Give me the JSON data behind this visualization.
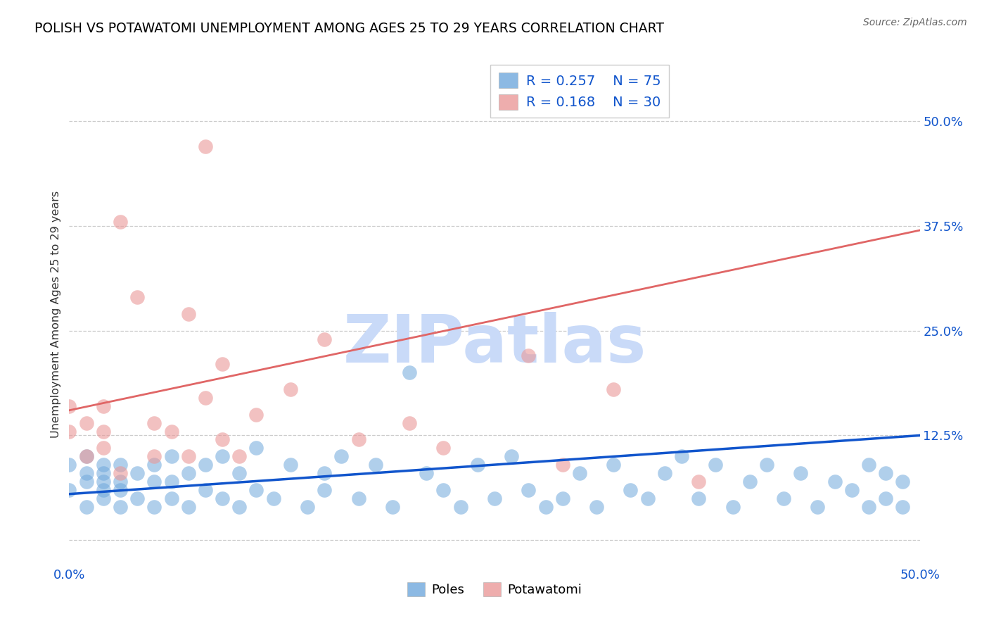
{
  "title": "POLISH VS POTAWATOMI UNEMPLOYMENT AMONG AGES 25 TO 29 YEARS CORRELATION CHART",
  "source_text": "Source: ZipAtlas.com",
  "ylabel": "Unemployment Among Ages 25 to 29 years",
  "xlim": [
    0.0,
    0.5
  ],
  "ylim": [
    -0.03,
    0.57
  ],
  "ytick_positions": [
    0.0,
    0.125,
    0.25,
    0.375,
    0.5
  ],
  "ytick_labels": [
    "",
    "12.5%",
    "25.0%",
    "37.5%",
    "50.0%"
  ],
  "poles_R": 0.257,
  "poles_N": 75,
  "potawatomi_R": 0.168,
  "potawatomi_N": 30,
  "poles_color": "#6fa8dc",
  "potawatomi_color": "#ea9999",
  "poles_line_color": "#1155cc",
  "potawatomi_line_color": "#e06666",
  "legend_text_color": "#1155cc",
  "watermark_color": "#c9daf8",
  "background_color": "#ffffff",
  "grid_color": "#cccccc",
  "title_color": "#000000",
  "poles_x": [
    0.0,
    0.0,
    0.01,
    0.01,
    0.01,
    0.01,
    0.02,
    0.02,
    0.02,
    0.02,
    0.02,
    0.03,
    0.03,
    0.03,
    0.03,
    0.04,
    0.04,
    0.05,
    0.05,
    0.05,
    0.06,
    0.06,
    0.06,
    0.07,
    0.07,
    0.08,
    0.08,
    0.09,
    0.09,
    0.1,
    0.1,
    0.11,
    0.11,
    0.12,
    0.13,
    0.14,
    0.15,
    0.15,
    0.16,
    0.17,
    0.18,
    0.19,
    0.2,
    0.21,
    0.22,
    0.23,
    0.24,
    0.25,
    0.26,
    0.27,
    0.28,
    0.29,
    0.3,
    0.31,
    0.32,
    0.33,
    0.34,
    0.35,
    0.36,
    0.37,
    0.38,
    0.39,
    0.4,
    0.41,
    0.42,
    0.43,
    0.44,
    0.45,
    0.46,
    0.47,
    0.47,
    0.48,
    0.48,
    0.49,
    0.49
  ],
  "poles_y": [
    0.06,
    0.09,
    0.04,
    0.07,
    0.1,
    0.08,
    0.05,
    0.08,
    0.06,
    0.09,
    0.07,
    0.04,
    0.07,
    0.06,
    0.09,
    0.05,
    0.08,
    0.04,
    0.07,
    0.09,
    0.05,
    0.07,
    0.1,
    0.04,
    0.08,
    0.06,
    0.09,
    0.05,
    0.1,
    0.04,
    0.08,
    0.06,
    0.11,
    0.05,
    0.09,
    0.04,
    0.08,
    0.06,
    0.1,
    0.05,
    0.09,
    0.04,
    0.2,
    0.08,
    0.06,
    0.04,
    0.09,
    0.05,
    0.1,
    0.06,
    0.04,
    0.05,
    0.08,
    0.04,
    0.09,
    0.06,
    0.05,
    0.08,
    0.1,
    0.05,
    0.09,
    0.04,
    0.07,
    0.09,
    0.05,
    0.08,
    0.04,
    0.07,
    0.06,
    0.09,
    0.04,
    0.08,
    0.05,
    0.07,
    0.04
  ],
  "potawatomi_x": [
    0.0,
    0.0,
    0.01,
    0.01,
    0.02,
    0.02,
    0.02,
    0.03,
    0.03,
    0.04,
    0.05,
    0.05,
    0.06,
    0.07,
    0.07,
    0.08,
    0.08,
    0.09,
    0.09,
    0.1,
    0.11,
    0.13,
    0.15,
    0.17,
    0.2,
    0.22,
    0.27,
    0.29,
    0.32,
    0.37
  ],
  "potawatomi_y": [
    0.13,
    0.16,
    0.1,
    0.14,
    0.13,
    0.16,
    0.11,
    0.38,
    0.08,
    0.29,
    0.14,
    0.1,
    0.13,
    0.27,
    0.1,
    0.17,
    0.47,
    0.21,
    0.12,
    0.1,
    0.15,
    0.18,
    0.24,
    0.12,
    0.14,
    0.11,
    0.22,
    0.09,
    0.18,
    0.07
  ],
  "poles_line_x0": 0.0,
  "poles_line_x1": 0.5,
  "poles_line_y0": 0.055,
  "poles_line_y1": 0.125,
  "potawatomi_line_x0": 0.0,
  "potawatomi_line_x1": 0.5,
  "potawatomi_line_y0": 0.155,
  "potawatomi_line_y1": 0.37
}
